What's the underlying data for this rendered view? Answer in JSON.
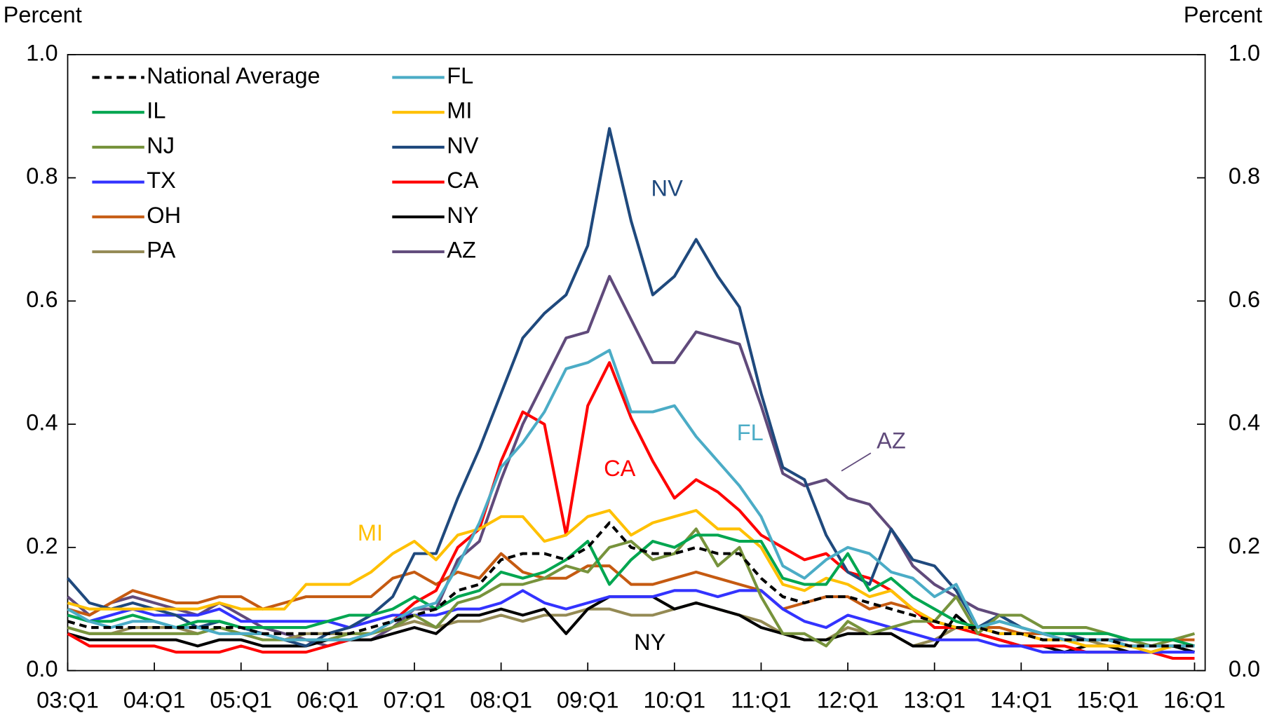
{
  "chart_data": {
    "type": "line",
    "y_label": "Percent",
    "y2_label": "Percent",
    "categories": [
      "03:Q1",
      null,
      null,
      null,
      "04:Q1",
      null,
      null,
      null,
      "05:Q1",
      null,
      null,
      null,
      "06:Q1",
      null,
      null,
      null,
      "07:Q1",
      null,
      null,
      null,
      "08:Q1",
      null,
      null,
      null,
      "09:Q1",
      null,
      null,
      null,
      "10:Q1",
      null,
      null,
      null,
      "11:Q1",
      null,
      null,
      null,
      "12:Q1",
      null,
      null,
      null,
      "13:Q1",
      null,
      null,
      null,
      "14:Q1",
      null,
      null,
      null,
      "15:Q1",
      null,
      null,
      null,
      "16:Q1"
    ],
    "ylim": [
      0,
      1
    ],
    "yticks": [
      {
        "value": 0,
        "label": "0.0"
      },
      {
        "value": 0.2,
        "label": "0.2"
      },
      {
        "value": 0.4,
        "label": "0.4"
      },
      {
        "value": 0.6,
        "label": "0.6"
      },
      {
        "value": 0.8,
        "label": "0.8"
      },
      {
        "value": 1,
        "label": "1.0"
      }
    ],
    "y2lim": [
      0,
      1
    ],
    "y2ticks": [
      {
        "value": 0,
        "label": "0.0"
      },
      {
        "value": 0.2,
        "label": "0.2"
      },
      {
        "value": 0.4,
        "label": "0.4"
      },
      {
        "value": 0.6,
        "label": "0.6"
      },
      {
        "value": 0.8,
        "label": "0.8"
      },
      {
        "value": 1,
        "label": "1.0"
      }
    ],
    "grid": false,
    "legend": "top-left",
    "series": [
      {
        "name": "National Average",
        "color": "#000000",
        "line_style": "dashed",
        "values": [
          0.08,
          0.07,
          0.07,
          0.07,
          0.07,
          0.07,
          0.07,
          0.07,
          0.07,
          0.06,
          0.06,
          0.06,
          0.06,
          0.06,
          0.07,
          0.08,
          0.09,
          0.1,
          0.13,
          0.14,
          0.18,
          0.19,
          0.19,
          0.18,
          0.2,
          0.24,
          0.2,
          0.19,
          0.19,
          0.2,
          0.19,
          0.19,
          0.15,
          0.12,
          0.11,
          0.12,
          0.12,
          0.11,
          0.1,
          0.09,
          0.08,
          0.07,
          0.07,
          0.06,
          0.06,
          0.05,
          0.05,
          0.05,
          0.05,
          0.04,
          0.04,
          0.04,
          0.04
        ]
      },
      {
        "name": "FL",
        "color": "#4bacc6",
        "line_style": "solid",
        "values": [
          0.1,
          0.08,
          0.07,
          0.08,
          0.08,
          0.07,
          0.07,
          0.06,
          0.06,
          0.06,
          0.05,
          0.05,
          0.05,
          0.05,
          0.06,
          0.08,
          0.1,
          0.11,
          0.17,
          0.24,
          0.33,
          0.37,
          0.42,
          0.49,
          0.5,
          0.52,
          0.42,
          0.42,
          0.43,
          0.38,
          0.34,
          0.3,
          0.25,
          0.17,
          0.15,
          0.18,
          0.2,
          0.19,
          0.16,
          0.15,
          0.12,
          0.14,
          0.07,
          0.08,
          0.07,
          0.06,
          0.05,
          0.05,
          0.05,
          0.04,
          0.04,
          0.04,
          0.04
        ]
      },
      {
        "name": "IL",
        "color": "#00a650",
        "line_style": "solid",
        "values": [
          0.09,
          0.08,
          0.08,
          0.09,
          0.08,
          0.07,
          0.08,
          0.08,
          0.07,
          0.07,
          0.07,
          0.07,
          0.08,
          0.09,
          0.09,
          0.1,
          0.12,
          0.1,
          0.12,
          0.13,
          0.16,
          0.15,
          0.16,
          0.18,
          0.21,
          0.14,
          0.18,
          0.21,
          0.2,
          0.22,
          0.22,
          0.21,
          0.21,
          0.15,
          0.14,
          0.14,
          0.19,
          0.13,
          0.15,
          0.12,
          0.1,
          0.08,
          0.07,
          0.08,
          0.07,
          0.06,
          0.06,
          0.06,
          0.06,
          0.05,
          0.05,
          0.05,
          0.04
        ]
      },
      {
        "name": "MI",
        "color": "#ffc000",
        "line_style": "solid",
        "values": [
          0.11,
          0.1,
          0.1,
          0.1,
          0.1,
          0.1,
          0.1,
          0.11,
          0.1,
          0.1,
          0.1,
          0.14,
          0.14,
          0.14,
          0.16,
          0.19,
          0.21,
          0.18,
          0.22,
          0.23,
          0.25,
          0.25,
          0.21,
          0.22,
          0.25,
          0.26,
          0.22,
          0.24,
          0.25,
          0.26,
          0.23,
          0.23,
          0.2,
          0.14,
          0.13,
          0.15,
          0.14,
          0.12,
          0.13,
          0.1,
          0.08,
          0.07,
          0.07,
          0.06,
          0.06,
          0.05,
          0.05,
          0.04,
          0.04,
          0.04,
          0.03,
          0.04,
          0.04
        ]
      },
      {
        "name": "NJ",
        "color": "#77933c",
        "line_style": "solid",
        "values": [
          0.07,
          0.06,
          0.06,
          0.06,
          0.06,
          0.06,
          0.06,
          0.07,
          0.06,
          0.05,
          0.05,
          0.05,
          0.05,
          0.06,
          0.06,
          0.07,
          0.09,
          0.07,
          0.11,
          0.12,
          0.14,
          0.14,
          0.15,
          0.17,
          0.16,
          0.2,
          0.21,
          0.18,
          0.19,
          0.23,
          0.17,
          0.2,
          0.12,
          0.06,
          0.06,
          0.04,
          0.08,
          0.06,
          0.07,
          0.08,
          0.08,
          0.12,
          0.06,
          0.09,
          0.09,
          0.07,
          0.07,
          0.07,
          0.06,
          0.05,
          0.04,
          0.05,
          0.06
        ]
      },
      {
        "name": "NV",
        "color": "#1f497d",
        "line_style": "solid",
        "values": [
          0.15,
          0.11,
          0.1,
          0.11,
          0.1,
          0.09,
          0.07,
          0.08,
          0.07,
          0.06,
          0.05,
          0.04,
          0.06,
          0.07,
          0.09,
          0.12,
          0.19,
          0.19,
          0.28,
          0.36,
          0.45,
          0.54,
          0.58,
          0.61,
          0.69,
          0.88,
          0.73,
          0.61,
          0.64,
          0.7,
          0.64,
          0.59,
          0.45,
          0.33,
          0.31,
          0.22,
          0.16,
          0.14,
          0.23,
          0.18,
          0.17,
          0.13,
          0.07,
          0.09,
          0.07,
          0.06,
          0.06,
          0.05,
          0.05,
          0.05,
          0.04,
          0.04,
          0.04
        ]
      },
      {
        "name": "TX",
        "color": "#3333ff",
        "line_style": "solid",
        "values": [
          0.09,
          0.08,
          0.09,
          0.1,
          0.09,
          0.09,
          0.09,
          0.1,
          0.08,
          0.08,
          0.08,
          0.08,
          0.08,
          0.07,
          0.08,
          0.09,
          0.09,
          0.09,
          0.1,
          0.1,
          0.11,
          0.13,
          0.11,
          0.1,
          0.11,
          0.12,
          0.12,
          0.12,
          0.13,
          0.13,
          0.12,
          0.13,
          0.13,
          0.1,
          0.08,
          0.07,
          0.09,
          0.08,
          0.07,
          0.06,
          0.05,
          0.05,
          0.05,
          0.04,
          0.04,
          0.03,
          0.03,
          0.03,
          0.03,
          0.03,
          0.03,
          0.03,
          0.03
        ]
      },
      {
        "name": "CA",
        "color": "#ff0000",
        "line_style": "solid",
        "values": [
          0.06,
          0.04,
          0.04,
          0.04,
          0.04,
          0.03,
          0.03,
          0.03,
          0.04,
          0.03,
          0.03,
          0.03,
          0.04,
          0.05,
          0.06,
          0.08,
          0.11,
          0.13,
          0.2,
          0.23,
          0.34,
          0.42,
          0.4,
          0.22,
          0.43,
          0.5,
          0.41,
          0.34,
          0.28,
          0.31,
          0.29,
          0.26,
          0.22,
          0.2,
          0.18,
          0.19,
          0.16,
          0.15,
          0.13,
          0.1,
          0.07,
          0.07,
          0.06,
          0.05,
          0.04,
          0.04,
          0.04,
          0.03,
          0.03,
          0.03,
          0.03,
          0.02,
          0.02
        ]
      },
      {
        "name": "OH",
        "color": "#c55a11",
        "line_style": "solid",
        "values": [
          0.1,
          0.09,
          0.11,
          0.13,
          0.12,
          0.11,
          0.11,
          0.12,
          0.12,
          0.1,
          0.11,
          0.12,
          0.12,
          0.12,
          0.12,
          0.15,
          0.16,
          0.14,
          0.16,
          0.15,
          0.19,
          0.16,
          0.15,
          0.15,
          0.17,
          0.17,
          0.14,
          0.14,
          0.15,
          0.16,
          0.15,
          0.14,
          0.13,
          0.1,
          0.11,
          0.12,
          0.12,
          0.1,
          0.11,
          0.1,
          0.08,
          0.07,
          0.07,
          0.07,
          0.06,
          0.06,
          0.05,
          0.05,
          0.05,
          0.04,
          0.04,
          0.05,
          0.05
        ]
      },
      {
        "name": "NY",
        "color": "#000000",
        "line_style": "solid",
        "values": [
          0.06,
          0.05,
          0.05,
          0.05,
          0.05,
          0.05,
          0.04,
          0.05,
          0.05,
          0.04,
          0.04,
          0.04,
          0.05,
          0.05,
          0.05,
          0.06,
          0.07,
          0.06,
          0.09,
          0.09,
          0.1,
          0.09,
          0.1,
          0.06,
          0.1,
          0.12,
          0.12,
          0.12,
          0.1,
          0.11,
          0.1,
          0.09,
          0.07,
          0.06,
          0.05,
          0.05,
          0.06,
          0.06,
          0.06,
          0.04,
          0.04,
          0.09,
          0.06,
          0.05,
          0.04,
          0.04,
          0.03,
          0.04,
          0.04,
          0.03,
          0.03,
          0.04,
          0.03
        ]
      },
      {
        "name": "PA",
        "color": "#948a54",
        "line_style": "solid",
        "values": [
          0.07,
          0.06,
          0.06,
          0.07,
          0.07,
          0.07,
          0.06,
          0.07,
          0.06,
          0.06,
          0.05,
          0.06,
          0.06,
          0.06,
          0.06,
          0.07,
          0.08,
          0.07,
          0.08,
          0.08,
          0.09,
          0.08,
          0.09,
          0.09,
          0.1,
          0.1,
          0.09,
          0.09,
          0.1,
          0.11,
          0.1,
          0.09,
          0.08,
          0.06,
          0.05,
          0.05,
          0.07,
          0.06,
          0.06,
          0.04,
          0.05,
          0.07,
          0.07,
          0.06,
          0.06,
          0.05,
          0.05,
          0.05,
          0.04,
          0.04,
          0.04,
          0.04,
          0.04
        ]
      },
      {
        "name": "AZ",
        "color": "#604a7b",
        "line_style": "solid",
        "values": [
          0.12,
          0.09,
          0.11,
          0.12,
          0.11,
          0.1,
          0.09,
          0.11,
          0.09,
          0.07,
          0.06,
          0.05,
          0.04,
          0.05,
          0.05,
          0.07,
          0.1,
          0.1,
          0.18,
          0.21,
          0.31,
          0.4,
          0.47,
          0.54,
          0.55,
          0.64,
          0.57,
          0.5,
          0.5,
          0.55,
          0.54,
          0.53,
          0.43,
          0.32,
          0.3,
          0.31,
          0.28,
          0.27,
          0.23,
          0.17,
          0.14,
          0.12,
          0.1,
          0.09,
          0.07,
          0.06,
          0.05,
          0.05,
          0.05,
          0.04,
          0.04,
          0.04,
          0.04
        ]
      }
    ],
    "annotations": [
      {
        "text": "NV",
        "color": "#1f497d"
      },
      {
        "text": "FL",
        "color": "#4bacc6"
      },
      {
        "text": "CA",
        "color": "#ff0000"
      },
      {
        "text": "MI",
        "color": "#ffc000"
      },
      {
        "text": "AZ",
        "color": "#604a7b"
      },
      {
        "text": "NY",
        "color": "#000000"
      }
    ]
  }
}
